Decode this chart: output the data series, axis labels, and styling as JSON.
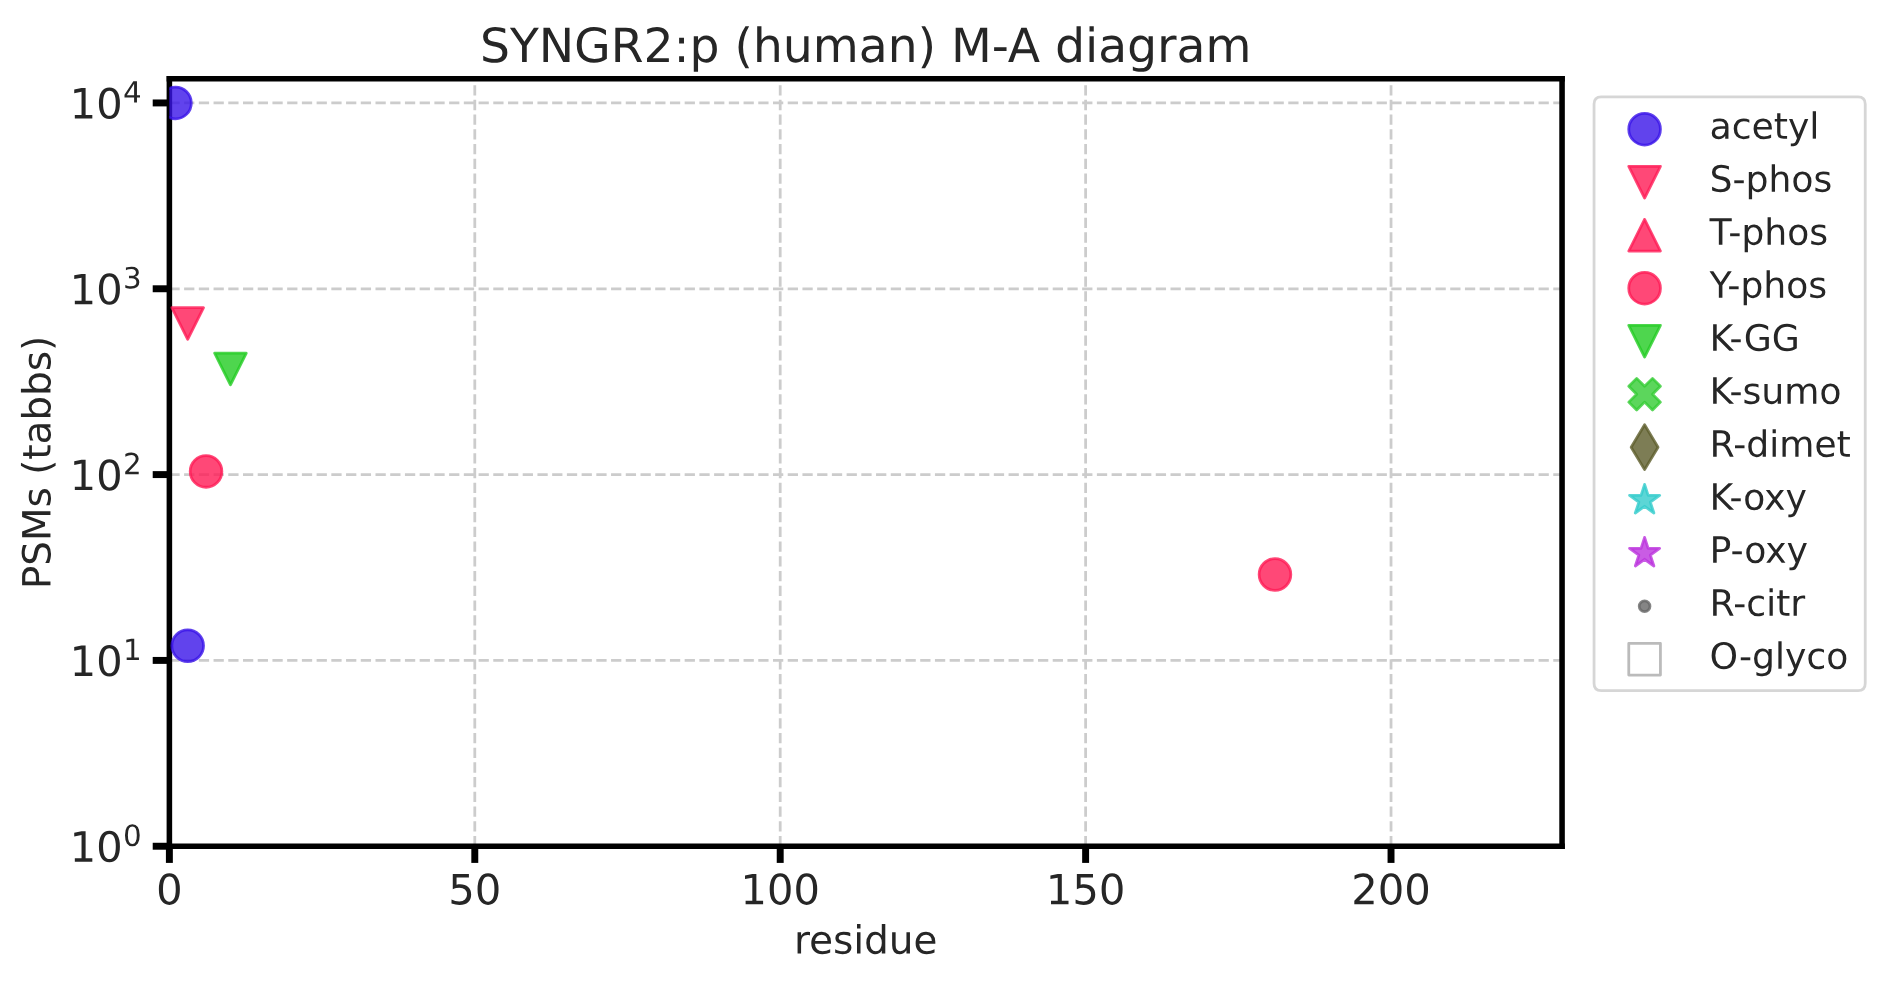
{
  "chart_data": {
    "type": "scatter",
    "title": "SYNGR2:p (human) M-A diagram",
    "xlabel": "residue",
    "ylabel": "PSMs (tabbs)",
    "log": "y",
    "xlim": [
      0,
      228
    ],
    "xticks": [
      0,
      50,
      100,
      150,
      200
    ],
    "ylim": [
      1,
      13500
    ],
    "yticks": [
      {
        "value": 1,
        "label": "10$^{0}$"
      },
      {
        "value": 10,
        "label": "10$^{1}$"
      },
      {
        "value": 100,
        "label": "10$^{2}$"
      },
      {
        "value": 1000,
        "label": "10$^{3}$"
      },
      {
        "value": 10000,
        "label": "10$^{4}$"
      }
    ],
    "grid": true,
    "legend": "right",
    "series": [
      {
        "name": "acetyl",
        "color": "#3a14e8",
        "marker": "circle",
        "x": [
          1,
          3
        ],
        "values": [
          10000,
          12
        ]
      },
      {
        "name": "S-phos",
        "color": "#ff1a55",
        "marker": "triangle_down",
        "x": [
          3
        ],
        "values": [
          650
        ]
      },
      {
        "name": "T-phos",
        "color": "#ff1a55",
        "marker": "triangle"
      },
      {
        "name": "Y-phos",
        "color": "#ff1a55",
        "marker": "circle",
        "x": [
          6,
          181
        ],
        "values": [
          104,
          29
        ]
      },
      {
        "name": "K-GG",
        "color": "#22cc22",
        "marker": "triangle_down",
        "x": [
          10
        ],
        "values": [
          370
        ]
      },
      {
        "name": "K-sumo",
        "color": "#33cc33",
        "marker": "cross"
      },
      {
        "name": "R-dimet",
        "color": "#5c5c2a",
        "marker": "diamond"
      },
      {
        "name": "K-oxy",
        "color": "#33cccc",
        "marker": "star"
      },
      {
        "name": "P-oxy",
        "color": "#bb33dd",
        "marker": "star"
      },
      {
        "name": "R-citr",
        "color": "#666666",
        "marker": "point"
      },
      {
        "name": "O-glyco",
        "color": "#ffffff",
        "marker": "square"
      }
    ]
  }
}
